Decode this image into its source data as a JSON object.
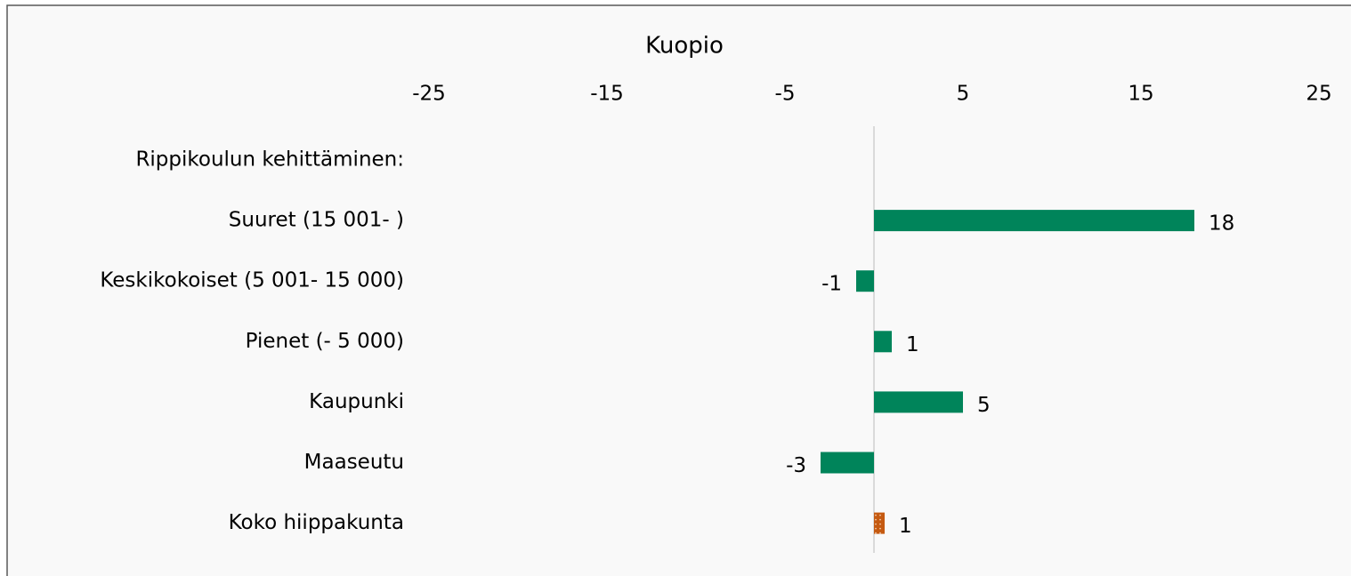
{
  "chart_data": {
    "type": "bar",
    "orientation": "horizontal",
    "title": "Kuopio",
    "categories": [
      "Rippikoulun kehittäminen:",
      "Suuret (15 001- )",
      "Keskikokoiset (5 001- 15 000)",
      "Pienet (- 5 000)",
      "Kaupunki",
      "Maaseutu",
      "Koko hiippakunta"
    ],
    "values": [
      null,
      18,
      -1,
      1,
      5,
      -3,
      0.6
    ],
    "value_labels": [
      null,
      "18",
      "-1",
      "1",
      "5",
      "-3",
      "1"
    ],
    "colors": [
      null,
      "#00845a",
      "#00845a",
      "#00845a",
      "#00845a",
      "#00845a",
      "#c55a11"
    ],
    "xlim": [
      -25,
      25
    ],
    "xticks": [
      -25,
      -15,
      -5,
      5,
      15,
      25
    ],
    "grid": false
  }
}
